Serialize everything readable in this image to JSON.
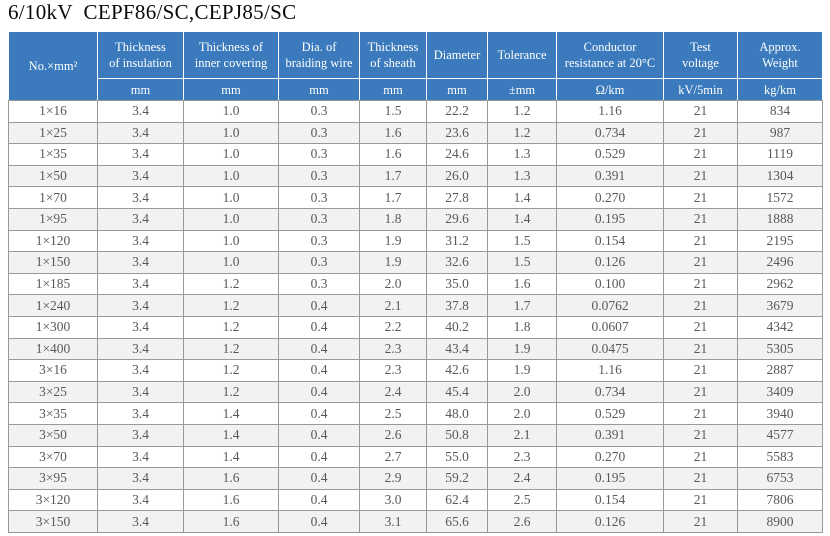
{
  "title": "6/10kV  CEPF86/SC,CEPJ85/SC",
  "colors": {
    "header_bg": "#3b7abc",
    "header_text": "#ffffff",
    "stripe_bg": "#f2f2f2",
    "row_bg": "#ffffff",
    "border": "#999999",
    "body_text": "#595959",
    "title_text": "#0a0a0a"
  },
  "table": {
    "columns": [
      {
        "label": "No.×mm²",
        "unit": null
      },
      {
        "label": "Thickness\nof insulation",
        "unit": "mm"
      },
      {
        "label": "Thickness of\ninner covering",
        "unit": "mm"
      },
      {
        "label": "Dia. of\nbraiding wire",
        "unit": "mm"
      },
      {
        "label": "Thickness\nof sheath",
        "unit": "mm"
      },
      {
        "label": "Diameter",
        "unit": "mm"
      },
      {
        "label": "Tolerance",
        "unit": "±mm"
      },
      {
        "label": "Conductor\nresistance at 20°C",
        "unit": "Ω/km"
      },
      {
        "label": "Test\nvoltage",
        "unit": "kV/5min"
      },
      {
        "label": "Approx.\nWeight",
        "unit": "kg/km"
      }
    ],
    "rows": [
      [
        "1×16",
        "3.4",
        "1.0",
        "0.3",
        "1.5",
        "22.2",
        "1.2",
        "1.16",
        "21",
        "834"
      ],
      [
        "1×25",
        "3.4",
        "1.0",
        "0.3",
        "1.6",
        "23.6",
        "1.2",
        "0.734",
        "21",
        "987"
      ],
      [
        "1×35",
        "3.4",
        "1.0",
        "0.3",
        "1.6",
        "24.6",
        "1.3",
        "0.529",
        "21",
        "1119"
      ],
      [
        "1×50",
        "3.4",
        "1.0",
        "0.3",
        "1.7",
        "26.0",
        "1.3",
        "0.391",
        "21",
        "1304"
      ],
      [
        "1×70",
        "3.4",
        "1.0",
        "0.3",
        "1.7",
        "27.8",
        "1.4",
        "0.270",
        "21",
        "1572"
      ],
      [
        "1×95",
        "3.4",
        "1.0",
        "0.3",
        "1.8",
        "29.6",
        "1.4",
        "0.195",
        "21",
        "1888"
      ],
      [
        "1×120",
        "3.4",
        "1.0",
        "0.3",
        "1.9",
        "31.2",
        "1.5",
        "0.154",
        "21",
        "2195"
      ],
      [
        "1×150",
        "3.4",
        "1.0",
        "0.3",
        "1.9",
        "32.6",
        "1.5",
        "0.126",
        "21",
        "2496"
      ],
      [
        "1×185",
        "3.4",
        "1.2",
        "0.3",
        "2.0",
        "35.0",
        "1.6",
        "0.100",
        "21",
        "2962"
      ],
      [
        "1×240",
        "3.4",
        "1.2",
        "0.4",
        "2.1",
        "37.8",
        "1.7",
        "0.0762",
        "21",
        "3679"
      ],
      [
        "1×300",
        "3.4",
        "1.2",
        "0.4",
        "2.2",
        "40.2",
        "1.8",
        "0.0607",
        "21",
        "4342"
      ],
      [
        "1×400",
        "3.4",
        "1.2",
        "0.4",
        "2.3",
        "43.4",
        "1.9",
        "0.0475",
        "21",
        "5305"
      ],
      [
        "3×16",
        "3.4",
        "1.2",
        "0.4",
        "2.3",
        "42.6",
        "1.9",
        "1.16",
        "21",
        "2887"
      ],
      [
        "3×25",
        "3.4",
        "1.2",
        "0.4",
        "2.4",
        "45.4",
        "2.0",
        "0.734",
        "21",
        "3409"
      ],
      [
        "3×35",
        "3.4",
        "1.4",
        "0.4",
        "2.5",
        "48.0",
        "2.0",
        "0.529",
        "21",
        "3940"
      ],
      [
        "3×50",
        "3.4",
        "1.4",
        "0.4",
        "2.6",
        "50.8",
        "2.1",
        "0.391",
        "21",
        "4577"
      ],
      [
        "3×70",
        "3.4",
        "1.4",
        "0.4",
        "2.7",
        "55.0",
        "2.3",
        "0.270",
        "21",
        "5583"
      ],
      [
        "3×95",
        "3.4",
        "1.6",
        "0.4",
        "2.9",
        "59.2",
        "2.4",
        "0.195",
        "21",
        "6753"
      ],
      [
        "3×120",
        "3.4",
        "1.6",
        "0.4",
        "3.0",
        "62.4",
        "2.5",
        "0.154",
        "21",
        "7806"
      ],
      [
        "3×150",
        "3.4",
        "1.6",
        "0.4",
        "3.1",
        "65.6",
        "2.6",
        "0.126",
        "21",
        "8900"
      ]
    ]
  }
}
